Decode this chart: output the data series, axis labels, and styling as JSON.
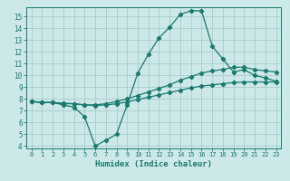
{
  "title": "",
  "xlabel": "Humidex (Indice chaleur)",
  "ylabel": "",
  "bg_color": "#cce8e8",
  "grid_color": "#aacccc",
  "line_color": "#1a7a6e",
  "spine_color": "#1a7a6e",
  "xlim": [
    -0.5,
    23.5
  ],
  "ylim": [
    3.8,
    15.8
  ],
  "yticks": [
    4,
    5,
    6,
    7,
    8,
    9,
    10,
    11,
    12,
    13,
    14,
    15
  ],
  "xticks": [
    0,
    1,
    2,
    3,
    4,
    5,
    6,
    7,
    8,
    9,
    10,
    11,
    12,
    13,
    14,
    15,
    16,
    17,
    18,
    19,
    20,
    21,
    22,
    23
  ],
  "line1_x": [
    0,
    1,
    2,
    3,
    4,
    5,
    6,
    7,
    8,
    9,
    10,
    11,
    12,
    13,
    14,
    15,
    16,
    17,
    18,
    19,
    20,
    21,
    22,
    23
  ],
  "line1_y": [
    7.8,
    7.7,
    7.7,
    7.5,
    7.3,
    6.5,
    4.0,
    4.5,
    5.0,
    7.5,
    10.2,
    11.8,
    13.2,
    14.1,
    15.2,
    15.5,
    15.5,
    12.5,
    11.4,
    10.3,
    10.5,
    10.0,
    9.8,
    9.5
  ],
  "line2_x": [
    0,
    1,
    2,
    3,
    4,
    5,
    6,
    7,
    8,
    9,
    10,
    11,
    12,
    13,
    14,
    15,
    16,
    17,
    18,
    19,
    20,
    21,
    22,
    23
  ],
  "line2_y": [
    7.8,
    7.7,
    7.7,
    7.6,
    7.6,
    7.5,
    7.5,
    7.6,
    7.8,
    8.0,
    8.3,
    8.6,
    8.9,
    9.2,
    9.6,
    9.9,
    10.2,
    10.4,
    10.5,
    10.7,
    10.7,
    10.5,
    10.4,
    10.3
  ],
  "line3_x": [
    0,
    1,
    2,
    3,
    4,
    5,
    6,
    7,
    8,
    9,
    10,
    11,
    12,
    13,
    14,
    15,
    16,
    17,
    18,
    19,
    20,
    21,
    22,
    23
  ],
  "line3_y": [
    7.8,
    7.7,
    7.7,
    7.65,
    7.6,
    7.5,
    7.45,
    7.5,
    7.6,
    7.75,
    7.95,
    8.15,
    8.35,
    8.55,
    8.75,
    8.95,
    9.1,
    9.2,
    9.3,
    9.4,
    9.45,
    9.45,
    9.45,
    9.45
  ]
}
